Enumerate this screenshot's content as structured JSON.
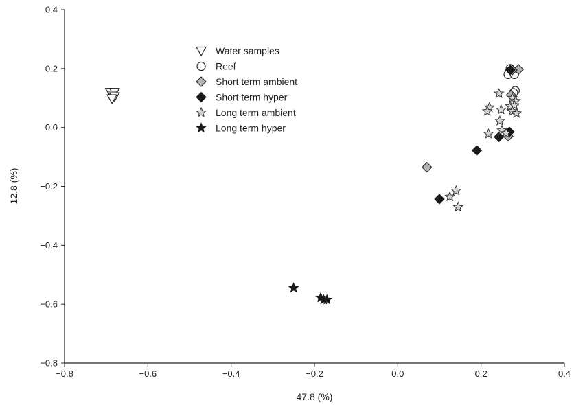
{
  "chart_data": {
    "type": "scatter",
    "title": "",
    "xlabel": "47.8 (%)",
    "ylabel": "12.8 (%)",
    "xlim": [
      -0.8,
      0.4
    ],
    "ylim": [
      -0.8,
      0.4
    ],
    "xticks": [
      "−0.8",
      "−0.6",
      "−0.4",
      "−0.2",
      "0.0",
      "0.2",
      "0.4"
    ],
    "yticks": [
      "−0.8",
      "−0.6",
      "−0.4",
      "−0.2",
      "0.0",
      "0.2",
      "0.4"
    ],
    "grid": false,
    "legend_position": "top-center",
    "series": [
      {
        "name": "Water samples",
        "marker": "triangle-down-open",
        "points": [
          [
            -0.69,
            0.12
          ],
          [
            -0.68,
            0.12
          ],
          [
            -0.685,
            0.11
          ],
          [
            -0.68,
            0.105
          ],
          [
            -0.686,
            0.098
          ]
        ]
      },
      {
        "name": "Reef",
        "marker": "circle-open",
        "points": [
          [
            0.265,
            0.18
          ],
          [
            0.28,
            0.18
          ],
          [
            0.282,
            0.125
          ],
          [
            0.278,
            0.118
          ],
          [
            0.27,
            0.2
          ]
        ]
      },
      {
        "name": "Short term ambient",
        "marker": "diamond-gray",
        "points": [
          [
            0.29,
            0.197
          ],
          [
            0.275,
            0.195
          ],
          [
            0.272,
            0.11
          ],
          [
            0.265,
            -0.03
          ],
          [
            0.07,
            -0.135
          ]
        ]
      },
      {
        "name": "Short term hyper",
        "marker": "diamond-black",
        "points": [
          [
            0.27,
            0.195
          ],
          [
            0.268,
            -0.015
          ],
          [
            0.243,
            -0.032
          ],
          [
            0.19,
            -0.078
          ],
          [
            0.1,
            -0.243
          ]
        ]
      },
      {
        "name": "Long term ambient",
        "marker": "star-open",
        "points": [
          [
            0.243,
            0.115
          ],
          [
            0.275,
            0.1
          ],
          [
            0.283,
            0.09
          ],
          [
            0.27,
            0.072
          ],
          [
            0.28,
            0.075
          ],
          [
            0.22,
            0.068
          ],
          [
            0.215,
            0.055
          ],
          [
            0.248,
            0.06
          ],
          [
            0.275,
            0.055
          ],
          [
            0.285,
            0.048
          ],
          [
            0.245,
            0.022
          ],
          [
            0.25,
            -0.01
          ],
          [
            0.26,
            -0.02
          ],
          [
            0.218,
            -0.022
          ],
          [
            0.14,
            -0.215
          ],
          [
            0.125,
            -0.235
          ],
          [
            0.145,
            -0.27
          ]
        ]
      },
      {
        "name": "Long term hyper",
        "marker": "star-filled",
        "points": [
          [
            -0.25,
            -0.545
          ],
          [
            -0.185,
            -0.578
          ],
          [
            -0.178,
            -0.585
          ],
          [
            -0.17,
            -0.585
          ]
        ]
      }
    ]
  }
}
